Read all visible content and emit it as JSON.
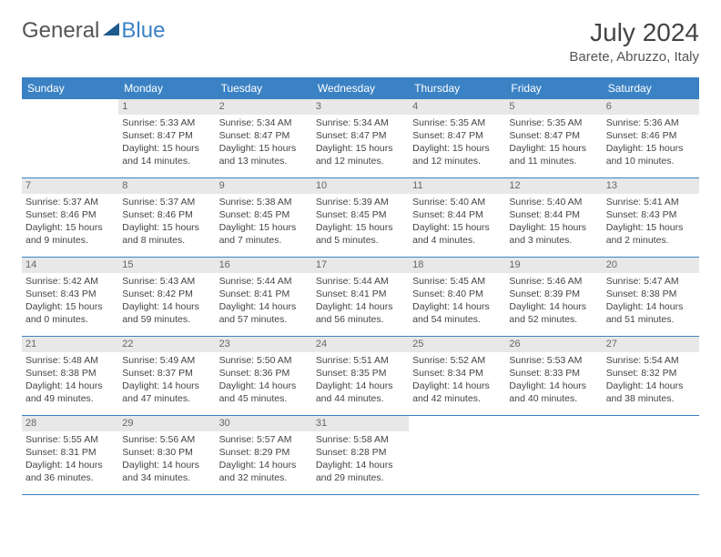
{
  "logo": {
    "part1": "General",
    "part2": "Blue"
  },
  "title": "July 2024",
  "location": "Barete, Abruzzo, Italy",
  "colors": {
    "header_bg": "#3b82c4",
    "header_text": "#ffffff",
    "daynum_bg": "#e8e8e8",
    "daynum_text": "#666666",
    "body_text": "#444444",
    "border": "#3b82c4"
  },
  "weekdays": [
    "Sunday",
    "Monday",
    "Tuesday",
    "Wednesday",
    "Thursday",
    "Friday",
    "Saturday"
  ],
  "weeks": [
    [
      {
        "num": "",
        "lines": []
      },
      {
        "num": "1",
        "lines": [
          "Sunrise: 5:33 AM",
          "Sunset: 8:47 PM",
          "Daylight: 15 hours",
          "and 14 minutes."
        ]
      },
      {
        "num": "2",
        "lines": [
          "Sunrise: 5:34 AM",
          "Sunset: 8:47 PM",
          "Daylight: 15 hours",
          "and 13 minutes."
        ]
      },
      {
        "num": "3",
        "lines": [
          "Sunrise: 5:34 AM",
          "Sunset: 8:47 PM",
          "Daylight: 15 hours",
          "and 12 minutes."
        ]
      },
      {
        "num": "4",
        "lines": [
          "Sunrise: 5:35 AM",
          "Sunset: 8:47 PM",
          "Daylight: 15 hours",
          "and 12 minutes."
        ]
      },
      {
        "num": "5",
        "lines": [
          "Sunrise: 5:35 AM",
          "Sunset: 8:47 PM",
          "Daylight: 15 hours",
          "and 11 minutes."
        ]
      },
      {
        "num": "6",
        "lines": [
          "Sunrise: 5:36 AM",
          "Sunset: 8:46 PM",
          "Daylight: 15 hours",
          "and 10 minutes."
        ]
      }
    ],
    [
      {
        "num": "7",
        "lines": [
          "Sunrise: 5:37 AM",
          "Sunset: 8:46 PM",
          "Daylight: 15 hours",
          "and 9 minutes."
        ]
      },
      {
        "num": "8",
        "lines": [
          "Sunrise: 5:37 AM",
          "Sunset: 8:46 PM",
          "Daylight: 15 hours",
          "and 8 minutes."
        ]
      },
      {
        "num": "9",
        "lines": [
          "Sunrise: 5:38 AM",
          "Sunset: 8:45 PM",
          "Daylight: 15 hours",
          "and 7 minutes."
        ]
      },
      {
        "num": "10",
        "lines": [
          "Sunrise: 5:39 AM",
          "Sunset: 8:45 PM",
          "Daylight: 15 hours",
          "and 5 minutes."
        ]
      },
      {
        "num": "11",
        "lines": [
          "Sunrise: 5:40 AM",
          "Sunset: 8:44 PM",
          "Daylight: 15 hours",
          "and 4 minutes."
        ]
      },
      {
        "num": "12",
        "lines": [
          "Sunrise: 5:40 AM",
          "Sunset: 8:44 PM",
          "Daylight: 15 hours",
          "and 3 minutes."
        ]
      },
      {
        "num": "13",
        "lines": [
          "Sunrise: 5:41 AM",
          "Sunset: 8:43 PM",
          "Daylight: 15 hours",
          "and 2 minutes."
        ]
      }
    ],
    [
      {
        "num": "14",
        "lines": [
          "Sunrise: 5:42 AM",
          "Sunset: 8:43 PM",
          "Daylight: 15 hours",
          "and 0 minutes."
        ]
      },
      {
        "num": "15",
        "lines": [
          "Sunrise: 5:43 AM",
          "Sunset: 8:42 PM",
          "Daylight: 14 hours",
          "and 59 minutes."
        ]
      },
      {
        "num": "16",
        "lines": [
          "Sunrise: 5:44 AM",
          "Sunset: 8:41 PM",
          "Daylight: 14 hours",
          "and 57 minutes."
        ]
      },
      {
        "num": "17",
        "lines": [
          "Sunrise: 5:44 AM",
          "Sunset: 8:41 PM",
          "Daylight: 14 hours",
          "and 56 minutes."
        ]
      },
      {
        "num": "18",
        "lines": [
          "Sunrise: 5:45 AM",
          "Sunset: 8:40 PM",
          "Daylight: 14 hours",
          "and 54 minutes."
        ]
      },
      {
        "num": "19",
        "lines": [
          "Sunrise: 5:46 AM",
          "Sunset: 8:39 PM",
          "Daylight: 14 hours",
          "and 52 minutes."
        ]
      },
      {
        "num": "20",
        "lines": [
          "Sunrise: 5:47 AM",
          "Sunset: 8:38 PM",
          "Daylight: 14 hours",
          "and 51 minutes."
        ]
      }
    ],
    [
      {
        "num": "21",
        "lines": [
          "Sunrise: 5:48 AM",
          "Sunset: 8:38 PM",
          "Daylight: 14 hours",
          "and 49 minutes."
        ]
      },
      {
        "num": "22",
        "lines": [
          "Sunrise: 5:49 AM",
          "Sunset: 8:37 PM",
          "Daylight: 14 hours",
          "and 47 minutes."
        ]
      },
      {
        "num": "23",
        "lines": [
          "Sunrise: 5:50 AM",
          "Sunset: 8:36 PM",
          "Daylight: 14 hours",
          "and 45 minutes."
        ]
      },
      {
        "num": "24",
        "lines": [
          "Sunrise: 5:51 AM",
          "Sunset: 8:35 PM",
          "Daylight: 14 hours",
          "and 44 minutes."
        ]
      },
      {
        "num": "25",
        "lines": [
          "Sunrise: 5:52 AM",
          "Sunset: 8:34 PM",
          "Daylight: 14 hours",
          "and 42 minutes."
        ]
      },
      {
        "num": "26",
        "lines": [
          "Sunrise: 5:53 AM",
          "Sunset: 8:33 PM",
          "Daylight: 14 hours",
          "and 40 minutes."
        ]
      },
      {
        "num": "27",
        "lines": [
          "Sunrise: 5:54 AM",
          "Sunset: 8:32 PM",
          "Daylight: 14 hours",
          "and 38 minutes."
        ]
      }
    ],
    [
      {
        "num": "28",
        "lines": [
          "Sunrise: 5:55 AM",
          "Sunset: 8:31 PM",
          "Daylight: 14 hours",
          "and 36 minutes."
        ]
      },
      {
        "num": "29",
        "lines": [
          "Sunrise: 5:56 AM",
          "Sunset: 8:30 PM",
          "Daylight: 14 hours",
          "and 34 minutes."
        ]
      },
      {
        "num": "30",
        "lines": [
          "Sunrise: 5:57 AM",
          "Sunset: 8:29 PM",
          "Daylight: 14 hours",
          "and 32 minutes."
        ]
      },
      {
        "num": "31",
        "lines": [
          "Sunrise: 5:58 AM",
          "Sunset: 8:28 PM",
          "Daylight: 14 hours",
          "and 29 minutes."
        ]
      },
      {
        "num": "",
        "lines": []
      },
      {
        "num": "",
        "lines": []
      },
      {
        "num": "",
        "lines": []
      }
    ]
  ]
}
